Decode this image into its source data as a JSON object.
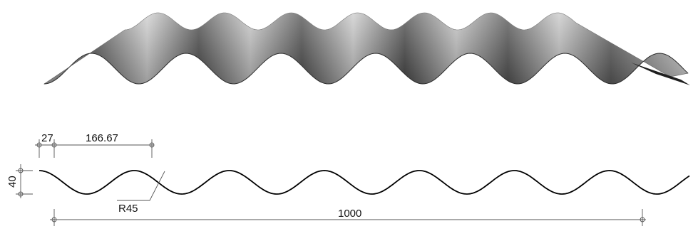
{
  "figure": {
    "rendered_sheet": {
      "name": "corrugated-sheet-3d",
      "colors": {
        "dark": "#3a3a3a",
        "mid": "#8c8c8c",
        "light": "#d8d8d8"
      }
    },
    "profile": {
      "line_color": "#000000",
      "waves_shown": 7
    },
    "dimensions": {
      "edge_offset": "27",
      "pitch": "166.67",
      "height": "40",
      "radius": "R45",
      "width": "1000"
    },
    "dimension_color": "#444444"
  }
}
